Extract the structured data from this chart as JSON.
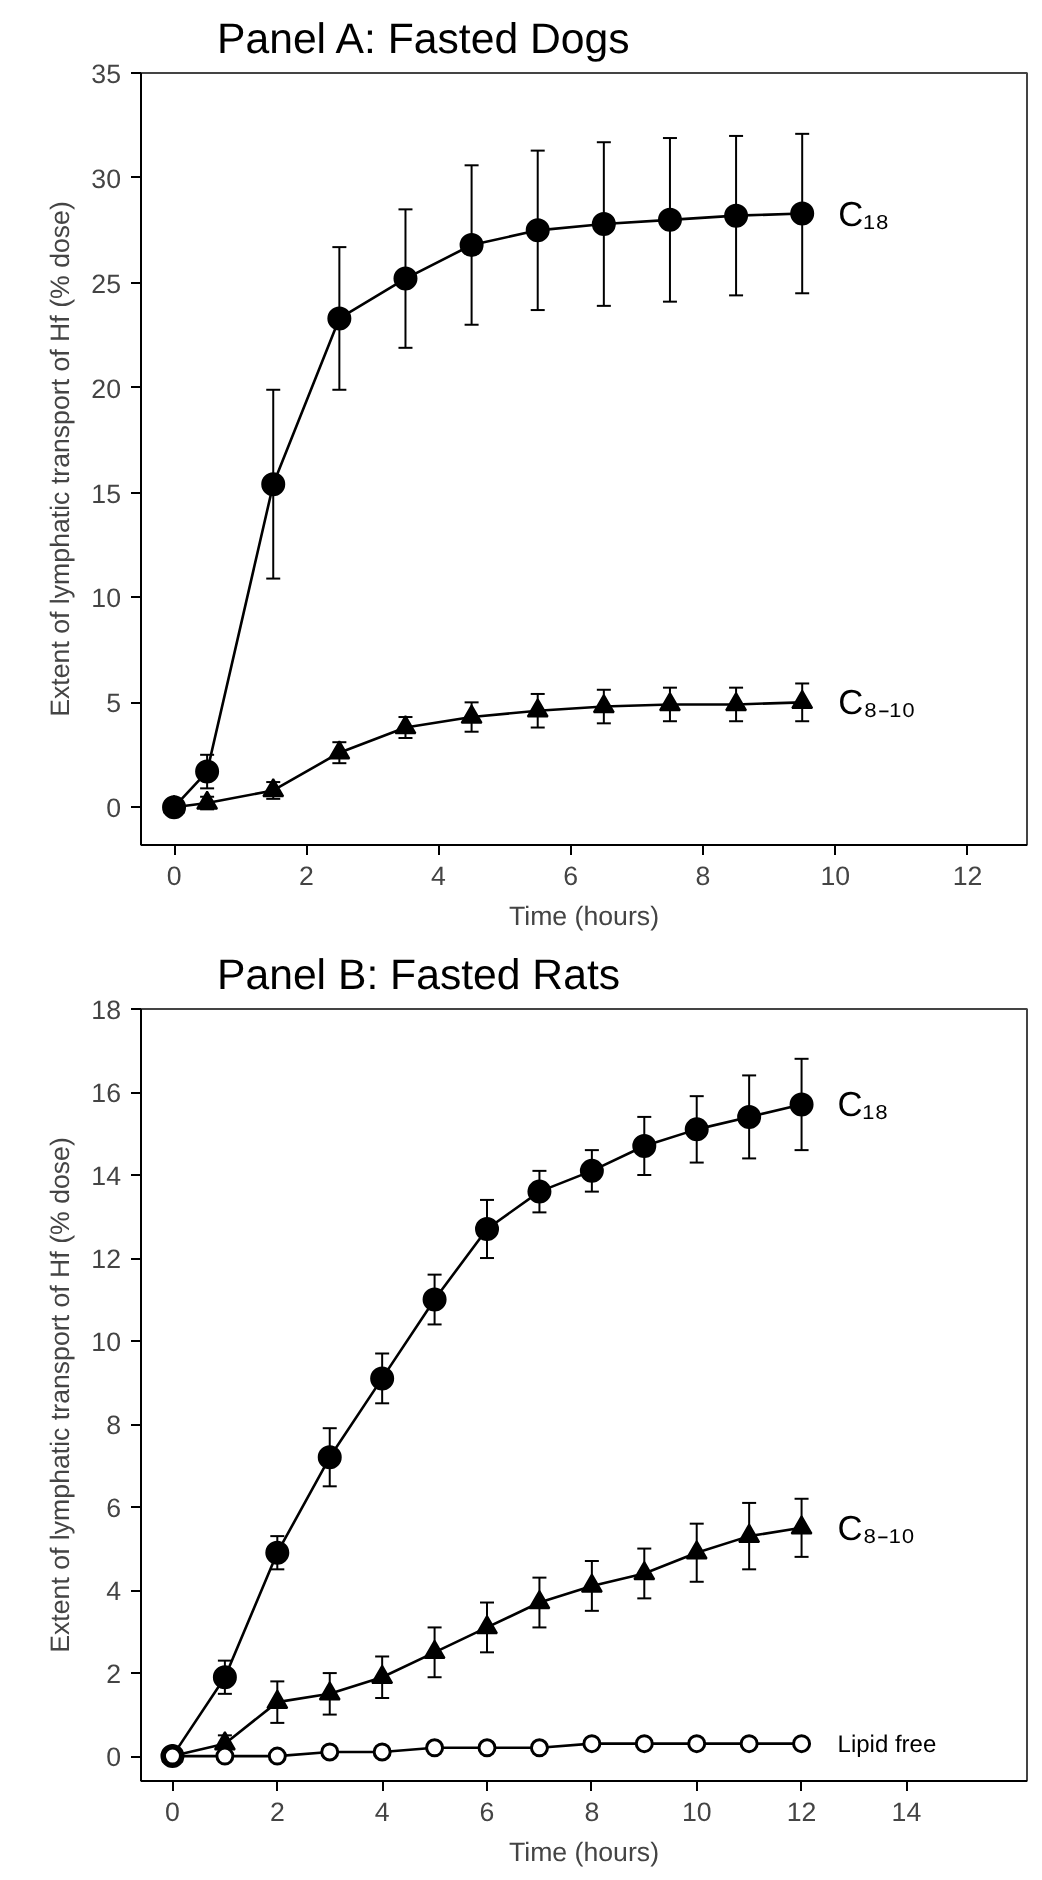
{
  "chart_data": [
    {
      "type": "line",
      "title": "Panel A: Fasted Dogs",
      "xlabel": "Time (hours)",
      "ylabel": "Extent of lymphatic transport of Hf (% dose)",
      "x": [
        0,
        0.5,
        1.5,
        2.5,
        3.5,
        4.5,
        5.5,
        6.5,
        7.5,
        8.5,
        9.5
      ],
      "series": [
        {
          "name": "C₁₈",
          "color": "#000000",
          "marker": "circle",
          "values": [
            0,
            1.7,
            15.4,
            23.3,
            25.2,
            26.8,
            27.5,
            27.8,
            28.0,
            28.2,
            28.3
          ],
          "errors": [
            null,
            0.8,
            4.5,
            3.4,
            3.3,
            3.8,
            3.8,
            3.9,
            3.9,
            3.8,
            3.8
          ]
        },
        {
          "name": "C₈₋₁₀",
          "color": "#000000",
          "marker": "triangle",
          "values": [
            0,
            0.2,
            0.8,
            2.6,
            3.8,
            4.3,
            4.6,
            4.8,
            4.9,
            4.9,
            5.0
          ],
          "errors": [
            null,
            0.3,
            0.4,
            0.5,
            0.5,
            0.7,
            0.8,
            0.8,
            0.8,
            0.8,
            0.9
          ]
        }
      ],
      "xlim": [
        -0.5,
        12.9
      ],
      "xticks": [
        0,
        2,
        4,
        6,
        8,
        10,
        12
      ],
      "ylim": [
        -1.8,
        35
      ],
      "yticks": [
        0,
        5,
        10,
        15,
        20,
        25,
        30,
        35
      ]
    },
    {
      "type": "line",
      "title": "Panel B: Fasted Rats",
      "xlabel": "Time (hours)",
      "ylabel": "Extent of lymphatic transport of Hf (% dose)",
      "x": [
        0,
        1,
        2,
        3,
        4,
        5,
        6,
        7,
        8,
        9,
        10,
        11,
        12
      ],
      "series": [
        {
          "name": "C₁₈",
          "color": "#000000",
          "marker": "circle",
          "values": [
            0,
            1.9,
            4.9,
            7.2,
            9.1,
            11.0,
            12.7,
            13.6,
            14.1,
            14.7,
            15.1,
            15.4,
            15.7
          ],
          "errors": [
            null,
            0.4,
            0.4,
            0.7,
            0.6,
            0.6,
            0.7,
            0.5,
            0.5,
            0.7,
            0.8,
            1.0,
            1.1
          ]
        },
        {
          "name": "C₈₋₁₀",
          "color": "#000000",
          "marker": "triangle",
          "values": [
            0,
            0.3,
            1.3,
            1.5,
            1.9,
            2.5,
            3.1,
            3.7,
            4.1,
            4.4,
            4.9,
            5.3,
            5.5
          ],
          "errors": [
            null,
            0.2,
            0.5,
            0.5,
            0.5,
            0.6,
            0.6,
            0.6,
            0.6,
            0.6,
            0.7,
            0.8,
            0.7
          ]
        },
        {
          "name": "Lipid free",
          "color": "#000000",
          "marker": "open_circle",
          "values": [
            0,
            0,
            0,
            0.1,
            0.1,
            0.2,
            0.2,
            0.2,
            0.3,
            0.3,
            0.3,
            0.3,
            0.3
          ]
        }
      ],
      "xlim": [
        -0.6,
        16.3
      ],
      "xticks": [
        0,
        2,
        4,
        6,
        8,
        10,
        12,
        14
      ],
      "ylim": [
        -0.6,
        18
      ],
      "yticks": [
        0,
        2,
        4,
        6,
        8,
        10,
        12,
        14,
        16,
        18
      ]
    }
  ]
}
